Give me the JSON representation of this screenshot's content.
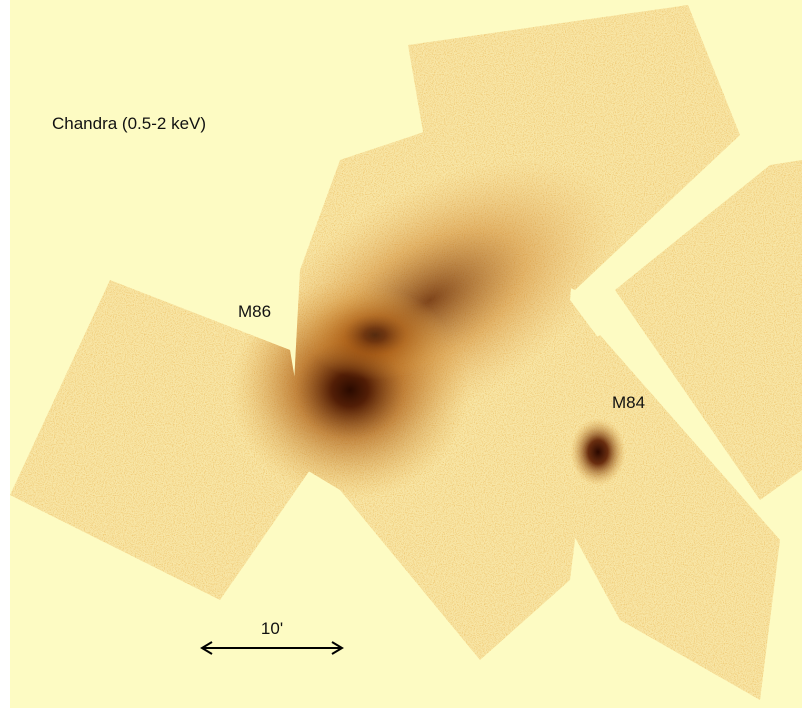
{
  "labels": {
    "title": "Chandra (0.5-2 keV)",
    "m86": "M86",
    "m84": "M84",
    "scale": "10'"
  }
}
